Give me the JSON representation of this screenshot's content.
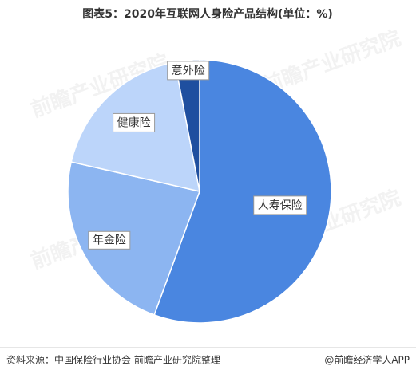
{
  "chart_data": {
    "type": "pie",
    "title": "图表5：2020年互联网人身险产品结构(单位：%)",
    "categories": [
      "人寿保险",
      "年金险",
      "健康险",
      "意外险"
    ],
    "values": [
      55.6,
      23.0,
      18.4,
      3.0
    ],
    "colors": [
      "#4a86e0",
      "#8cb5f1",
      "#bcd5fa",
      "#1f4f9f"
    ],
    "start_angle": 0,
    "direction": "clockwise"
  },
  "footer": {
    "source": "资料来源：中国保险行业协会 前瞻产业研究院整理",
    "brand": "@前瞻经济学人APP"
  },
  "watermark": "前瞻产业研究院"
}
